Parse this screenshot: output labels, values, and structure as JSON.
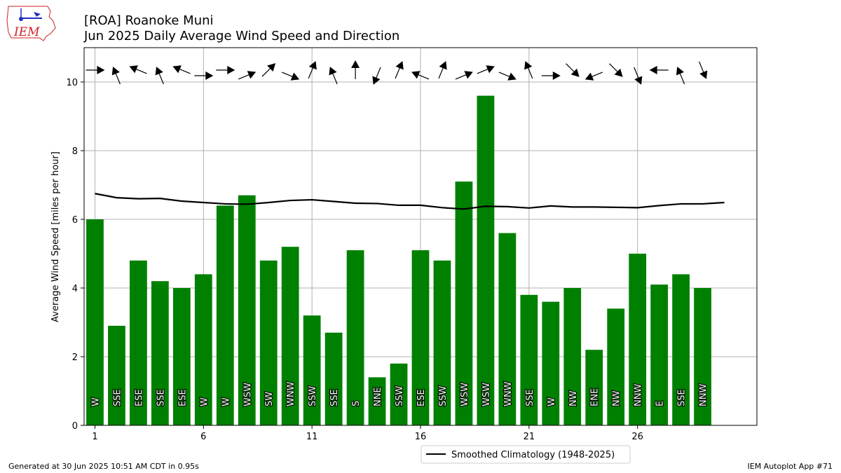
{
  "header": {
    "logo_text": "IEM",
    "title_line1": "[ROA] Roanoke Muni",
    "title_line2": "Jun 2025 Daily Average Wind Speed and Direction"
  },
  "footer": {
    "generated": "Generated at 30 Jun 2025 10:51 AM CDT in 0.95s",
    "app": "IEM Autoplot App #71"
  },
  "colors": {
    "bar": "#008000",
    "climo_line": "#000000",
    "grid": "#b0b0b0",
    "logo_outline": "#cc2222",
    "logo_icon": "#1f2fbf"
  },
  "chart_data": {
    "type": "bar",
    "ylabel": "Average Wind Speed [miles per hour]",
    "ylim": [
      0,
      11
    ],
    "xlim": [
      0.5,
      31.5
    ],
    "x_ticks": [
      1,
      6,
      11,
      16,
      21,
      26
    ],
    "y_ticks": [
      0,
      2,
      4,
      6,
      8,
      10
    ],
    "grid": true,
    "days": [
      1,
      2,
      3,
      4,
      5,
      6,
      7,
      8,
      9,
      10,
      11,
      12,
      13,
      14,
      15,
      16,
      17,
      18,
      19,
      20,
      21,
      22,
      23,
      24,
      25,
      26,
      27,
      28,
      29
    ],
    "values": [
      6.0,
      2.9,
      4.8,
      4.2,
      4.0,
      4.4,
      6.4,
      6.7,
      4.8,
      5.2,
      3.2,
      2.7,
      5.1,
      1.4,
      1.8,
      5.1,
      4.8,
      7.1,
      9.6,
      5.6,
      3.8,
      3.6,
      4.0,
      2.2,
      3.4,
      5.0,
      4.1,
      4.4,
      4.0
    ],
    "directions": [
      "W",
      "SSE",
      "ESE",
      "SSE",
      "ESE",
      "W",
      "W",
      "WSW",
      "SW",
      "WNW",
      "SSW",
      "SSE",
      "S",
      "NNE",
      "SSW",
      "ESE",
      "SSW",
      "WSW",
      "WSW",
      "WNW",
      "SSE",
      "W",
      "NW",
      "ENE",
      "NW",
      "NNW",
      "E",
      "SSE",
      "NNW"
    ],
    "direction_degrees": [
      270,
      157.5,
      112.5,
      157.5,
      112.5,
      270,
      270,
      247.5,
      225,
      292.5,
      202.5,
      157.5,
      180,
      22.5,
      202.5,
      112.5,
      202.5,
      247.5,
      247.5,
      292.5,
      157.5,
      270,
      315,
      67.5,
      315,
      337.5,
      90,
      157.5,
      337.5
    ],
    "climatology": {
      "name": "Smoothed Climatology (1948-2025)",
      "x": [
        1,
        2,
        3,
        4,
        5,
        6,
        7,
        8,
        9,
        10,
        11,
        12,
        13,
        14,
        15,
        16,
        17,
        18,
        19,
        20,
        21,
        22,
        23,
        24,
        25,
        26,
        27,
        28,
        29,
        30
      ],
      "values": [
        6.75,
        6.63,
        6.6,
        6.61,
        6.53,
        6.49,
        6.45,
        6.44,
        6.49,
        6.55,
        6.57,
        6.52,
        6.47,
        6.46,
        6.41,
        6.41,
        6.34,
        6.3,
        6.38,
        6.37,
        6.33,
        6.39,
        6.36,
        6.36,
        6.35,
        6.34,
        6.4,
        6.45,
        6.45,
        6.49
      ]
    },
    "legend_position": "bottom-center"
  }
}
